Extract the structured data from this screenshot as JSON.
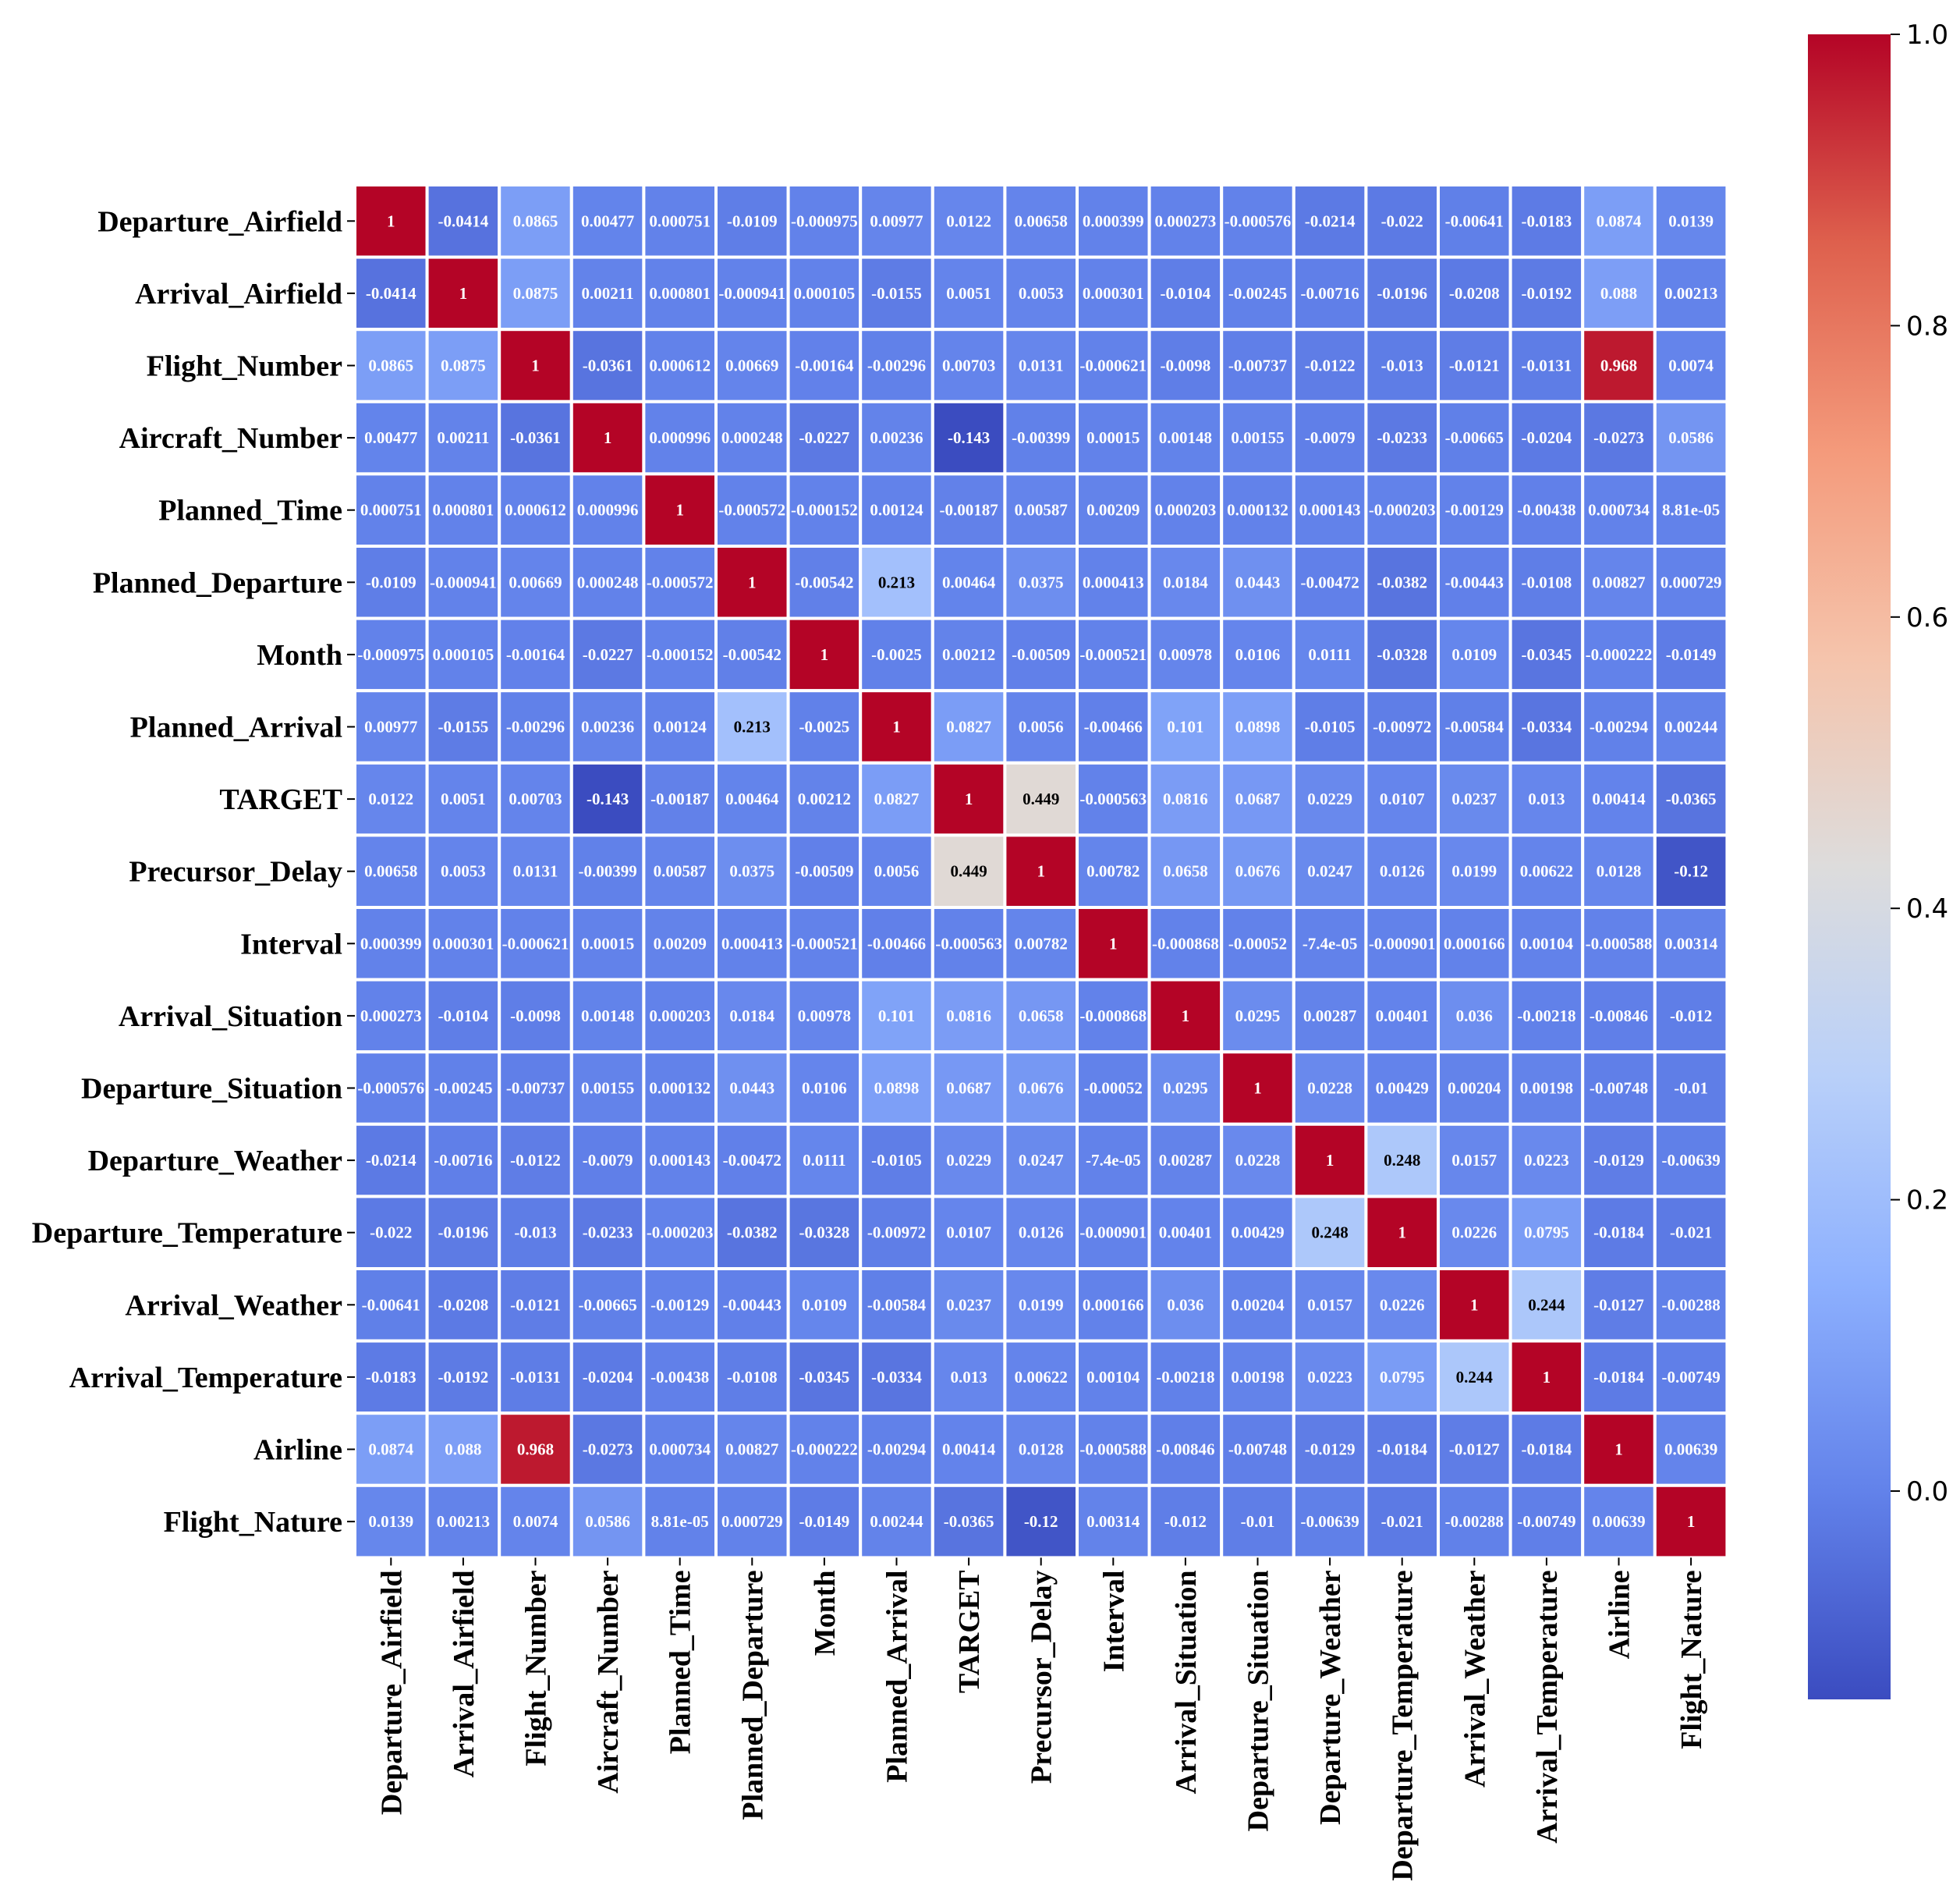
{
  "chart_data": {
    "type": "heatmap",
    "title": "",
    "xlabel": "",
    "ylabel": "",
    "labels": [
      "Departure_Airfield",
      "Arrival_Airfield",
      "Flight_Number",
      "Aircraft_Number",
      "Planned_Time",
      "Planned_Departure",
      "Month",
      "Planned_Arrival",
      "TARGET",
      "Precursor_Delay",
      "Interval",
      "Arrival_Situation",
      "Departure_Situation",
      "Departure_Weather",
      "Departure_Temperature",
      "Arrival_Weather",
      "Arrival_Temperature",
      "Airline",
      "Flight_Nature"
    ],
    "display": [
      [
        "1",
        "-0.0414",
        "0.0865",
        "0.00477",
        "0.000751",
        "-0.0109",
        "-0.000975",
        "0.00977",
        "0.0122",
        "0.00658",
        "0.000399",
        "0.000273",
        "-0.000576",
        "-0.0214",
        "-0.022",
        "-0.00641",
        "-0.0183",
        "0.0874",
        "0.0139"
      ],
      [
        "-0.0414",
        "1",
        "0.0875",
        "0.00211",
        "0.000801",
        "-0.000941",
        "0.000105",
        "-0.0155",
        "0.0051",
        "0.0053",
        "0.000301",
        "-0.0104",
        "-0.00245",
        "-0.00716",
        "-0.0196",
        "-0.0208",
        "-0.0192",
        "0.088",
        "0.00213"
      ],
      [
        "0.0865",
        "0.0875",
        "1",
        "-0.0361",
        "0.000612",
        "0.00669",
        "-0.00164",
        "-0.00296",
        "0.00703",
        "0.0131",
        "-0.000621",
        "-0.0098",
        "-0.00737",
        "-0.0122",
        "-0.013",
        "-0.0121",
        "-0.0131",
        "0.968",
        "0.0074"
      ],
      [
        "0.00477",
        "0.00211",
        "-0.0361",
        "1",
        "0.000996",
        "0.000248",
        "-0.0227",
        "0.00236",
        "-0.143",
        "-0.00399",
        "0.00015",
        "0.00148",
        "0.00155",
        "-0.0079",
        "-0.0233",
        "-0.00665",
        "-0.0204",
        "-0.0273",
        "0.0586"
      ],
      [
        "0.000751",
        "0.000801",
        "0.000612",
        "0.000996",
        "1",
        "-0.000572",
        "-0.000152",
        "0.00124",
        "-0.00187",
        "0.00587",
        "0.00209",
        "0.000203",
        "0.000132",
        "0.000143",
        "-0.000203",
        "-0.00129",
        "-0.00438",
        "0.000734",
        "8.81e-05"
      ],
      [
        "-0.0109",
        "-0.000941",
        "0.00669",
        "0.000248",
        "-0.000572",
        "1",
        "-0.00542",
        "0.213",
        "0.00464",
        "0.0375",
        "0.000413",
        "0.0184",
        "0.0443",
        "-0.00472",
        "-0.0382",
        "-0.00443",
        "-0.0108",
        "0.00827",
        "0.000729"
      ],
      [
        "-0.000975",
        "0.000105",
        "-0.00164",
        "-0.0227",
        "-0.000152",
        "-0.00542",
        "1",
        "-0.0025",
        "0.00212",
        "-0.00509",
        "-0.000521",
        "0.00978",
        "0.0106",
        "0.0111",
        "-0.0328",
        "0.0109",
        "-0.0345",
        "-0.000222",
        "-0.0149"
      ],
      [
        "0.00977",
        "-0.0155",
        "-0.00296",
        "0.00236",
        "0.00124",
        "0.213",
        "-0.0025",
        "1",
        "0.0827",
        "0.0056",
        "-0.00466",
        "0.101",
        "0.0898",
        "-0.0105",
        "-0.00972",
        "-0.00584",
        "-0.0334",
        "-0.00294",
        "0.00244"
      ],
      [
        "0.0122",
        "0.0051",
        "0.00703",
        "-0.143",
        "-0.00187",
        "0.00464",
        "0.00212",
        "0.0827",
        "1",
        "0.449",
        "-0.000563",
        "0.0816",
        "0.0687",
        "0.0229",
        "0.0107",
        "0.0237",
        "0.013",
        "0.00414",
        "-0.0365"
      ],
      [
        "0.00658",
        "0.0053",
        "0.0131",
        "-0.00399",
        "0.00587",
        "0.0375",
        "-0.00509",
        "0.0056",
        "0.449",
        "1",
        "0.00782",
        "0.0658",
        "0.0676",
        "0.0247",
        "0.0126",
        "0.0199",
        "0.00622",
        "0.0128",
        "-0.12"
      ],
      [
        "0.000399",
        "0.000301",
        "-0.000621",
        "0.00015",
        "0.00209",
        "0.000413",
        "-0.000521",
        "-0.00466",
        "-0.000563",
        "0.00782",
        "1",
        "-0.000868",
        "-0.00052",
        "-7.4e-05",
        "-0.000901",
        "0.000166",
        "0.00104",
        "-0.000588",
        "0.00314"
      ],
      [
        "0.000273",
        "-0.0104",
        "-0.0098",
        "0.00148",
        "0.000203",
        "0.0184",
        "0.00978",
        "0.101",
        "0.0816",
        "0.0658",
        "-0.000868",
        "1",
        "0.0295",
        "0.00287",
        "0.00401",
        "0.036",
        "-0.00218",
        "-0.00846",
        "-0.012"
      ],
      [
        "-0.000576",
        "-0.00245",
        "-0.00737",
        "0.00155",
        "0.000132",
        "0.0443",
        "0.0106",
        "0.0898",
        "0.0687",
        "0.0676",
        "-0.00052",
        "0.0295",
        "1",
        "0.0228",
        "0.00429",
        "0.00204",
        "0.00198",
        "-0.00748",
        "-0.01"
      ],
      [
        "-0.0214",
        "-0.00716",
        "-0.0122",
        "-0.0079",
        "0.000143",
        "-0.00472",
        "0.0111",
        "-0.0105",
        "0.0229",
        "0.0247",
        "-7.4e-05",
        "0.00287",
        "0.0228",
        "1",
        "0.248",
        "0.0157",
        "0.0223",
        "-0.0129",
        "-0.00639"
      ],
      [
        "-0.022",
        "-0.0196",
        "-0.013",
        "-0.0233",
        "-0.000203",
        "-0.0382",
        "-0.0328",
        "-0.00972",
        "0.0107",
        "0.0126",
        "-0.000901",
        "0.00401",
        "0.00429",
        "0.248",
        "1",
        "0.0226",
        "0.0795",
        "-0.0184",
        "-0.021"
      ],
      [
        "-0.00641",
        "-0.0208",
        "-0.0121",
        "-0.00665",
        "-0.00129",
        "-0.00443",
        "0.0109",
        "-0.00584",
        "0.0237",
        "0.0199",
        "0.000166",
        "0.036",
        "0.00204",
        "0.0157",
        "0.0226",
        "1",
        "0.244",
        "-0.0127",
        "-0.00288"
      ],
      [
        "-0.0183",
        "-0.0192",
        "-0.0131",
        "-0.0204",
        "-0.00438",
        "-0.0108",
        "-0.0345",
        "-0.0334",
        "0.013",
        "0.00622",
        "0.00104",
        "-0.00218",
        "0.00198",
        "0.0223",
        "0.0795",
        "0.244",
        "1",
        "-0.0184",
        "-0.00749"
      ],
      [
        "0.0874",
        "0.088",
        "0.968",
        "-0.0273",
        "0.000734",
        "0.00827",
        "-0.000222",
        "-0.00294",
        "0.00414",
        "0.0128",
        "-0.000588",
        "-0.00846",
        "-0.00748",
        "-0.0129",
        "-0.0184",
        "-0.0127",
        "-0.0184",
        "1",
        "0.00639"
      ],
      [
        "0.0139",
        "0.00213",
        "0.0074",
        "0.0586",
        "8.81e-05",
        "0.000729",
        "-0.0149",
        "0.00244",
        "-0.0365",
        "-0.12",
        "0.00314",
        "-0.012",
        "-0.01",
        "-0.00639",
        "-0.021",
        "-0.00288",
        "-0.00749",
        "0.00639",
        "1"
      ]
    ],
    "colorbar": {
      "vmin": -0.143,
      "vmax": 1.0,
      "ticks": [
        0.0,
        0.2,
        0.4,
        0.6,
        0.8,
        1.0
      ],
      "tick_labels": [
        "0.0",
        "0.2",
        "0.4",
        "0.6",
        "0.8",
        "1.0"
      ],
      "colormap": "coolwarm",
      "stops": [
        "#3b4cc0",
        "#6282ea",
        "#8db0fe",
        "#b9d0f9",
        "#dddcdc",
        "#f5c4ac",
        "#f49a7b",
        "#de604d",
        "#b40426"
      ]
    },
    "cell_border_color": "#ffffff"
  }
}
